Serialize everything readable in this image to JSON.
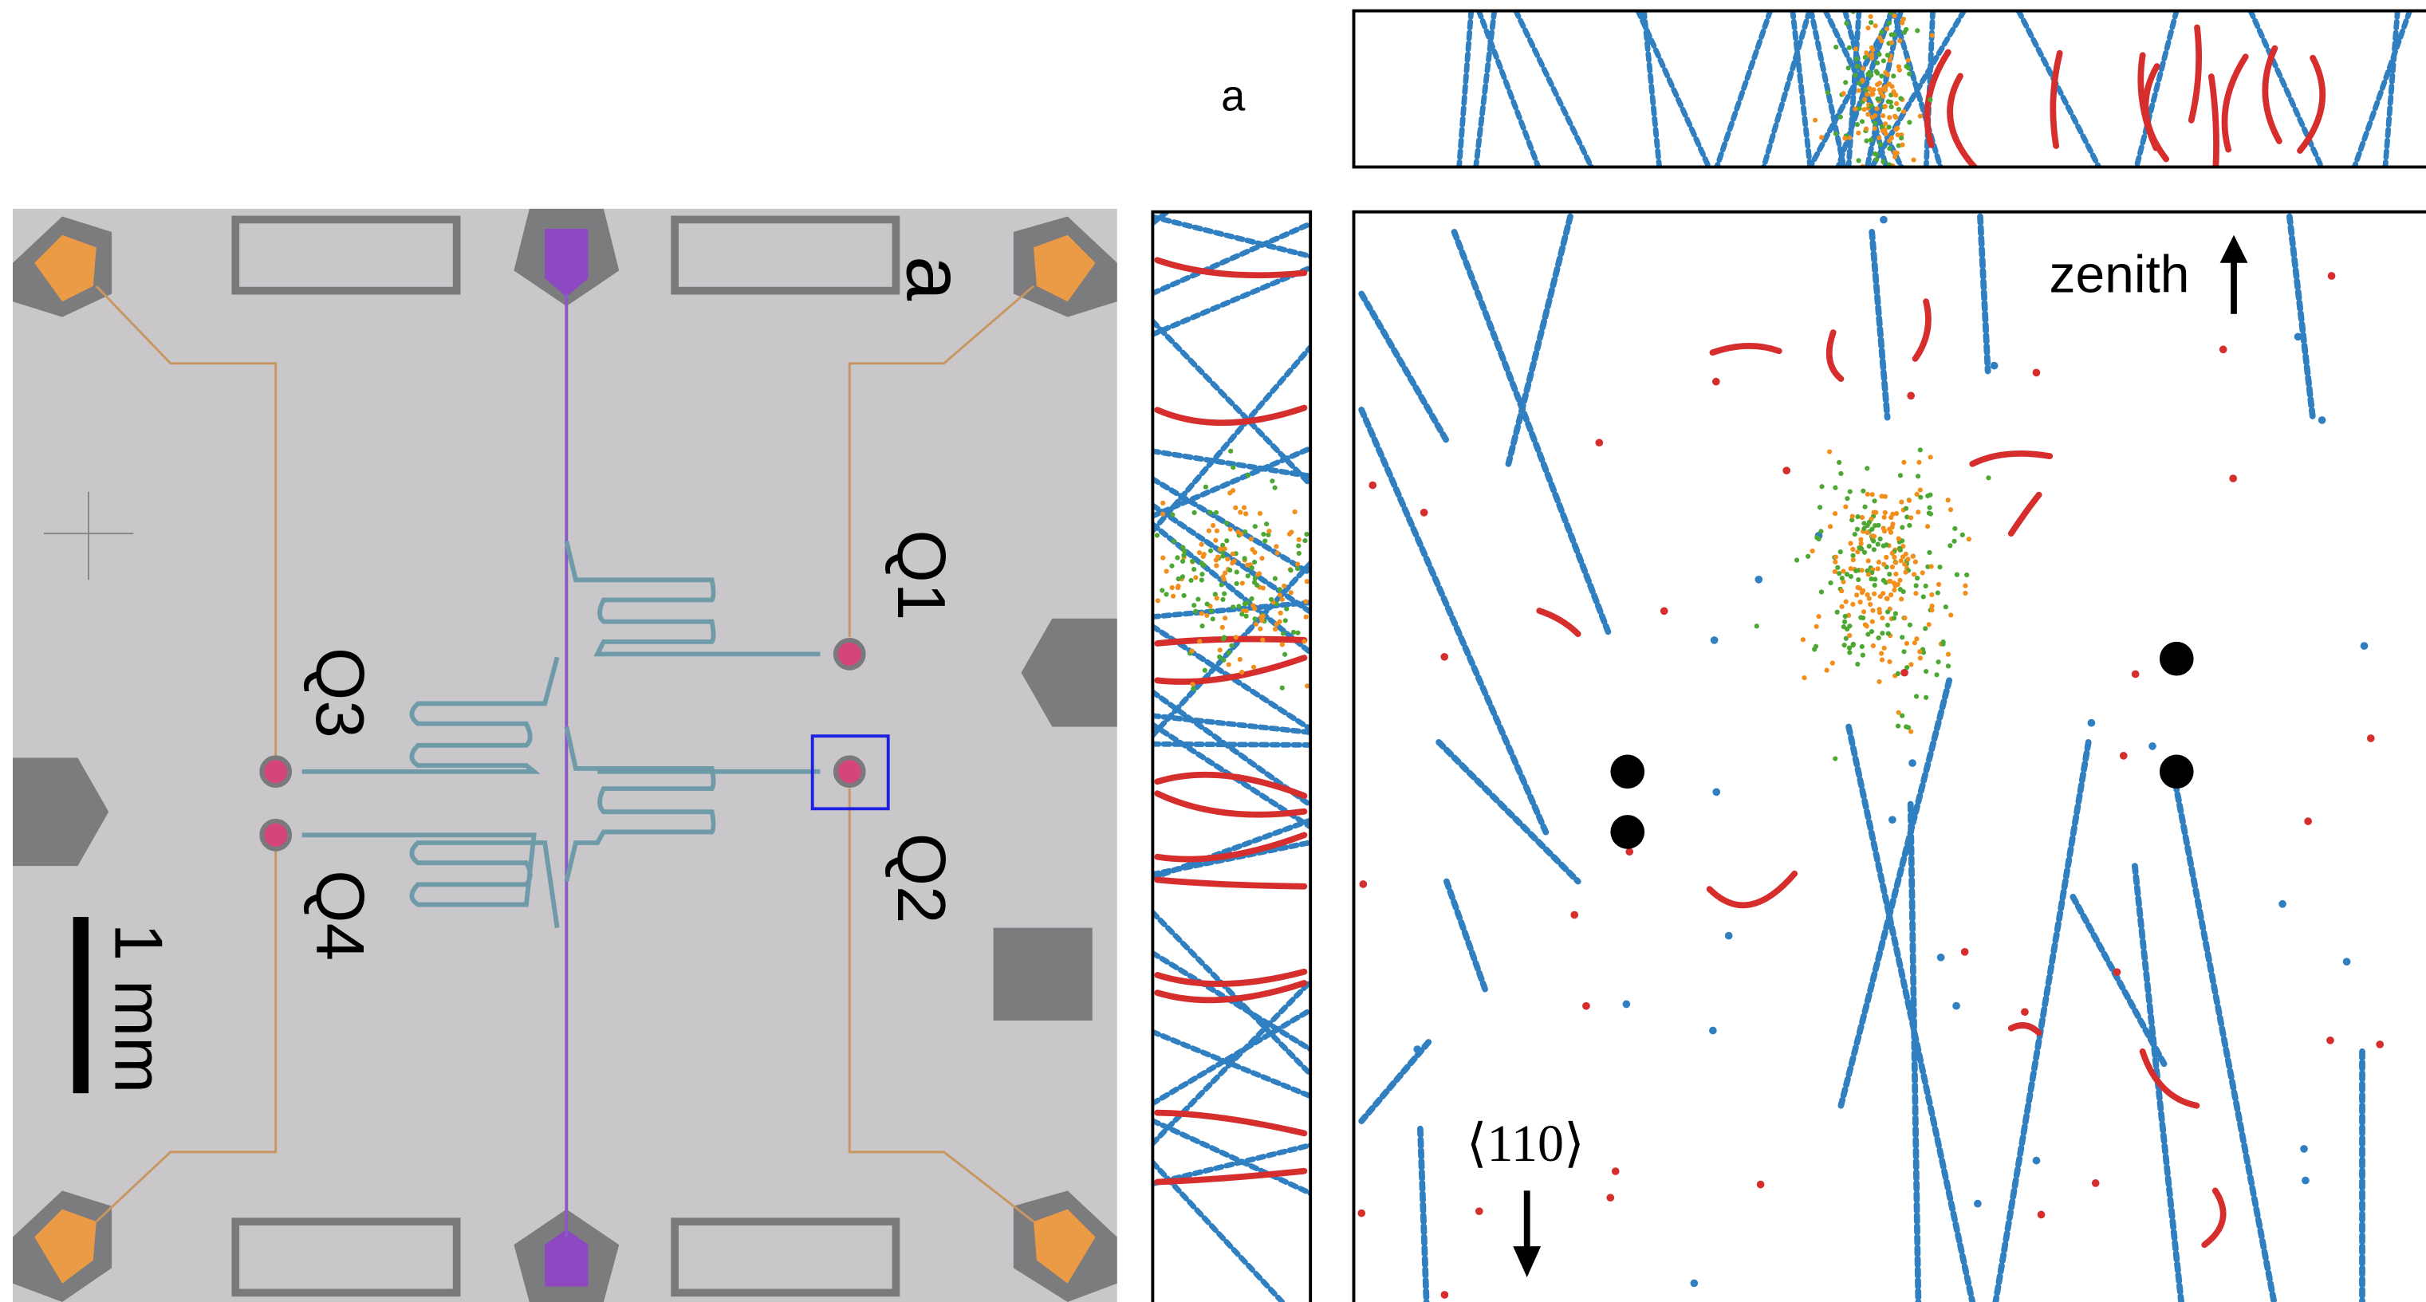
{
  "chip": {
    "panel_label": "a",
    "qubits": [
      "Q1",
      "Q2",
      "Q3",
      "Q4"
    ],
    "scale_bar": "1 mm"
  },
  "tracks": {
    "panel_label": "a",
    "zenith_label": "zenith",
    "axis_label": "⟨110⟩"
  }
}
